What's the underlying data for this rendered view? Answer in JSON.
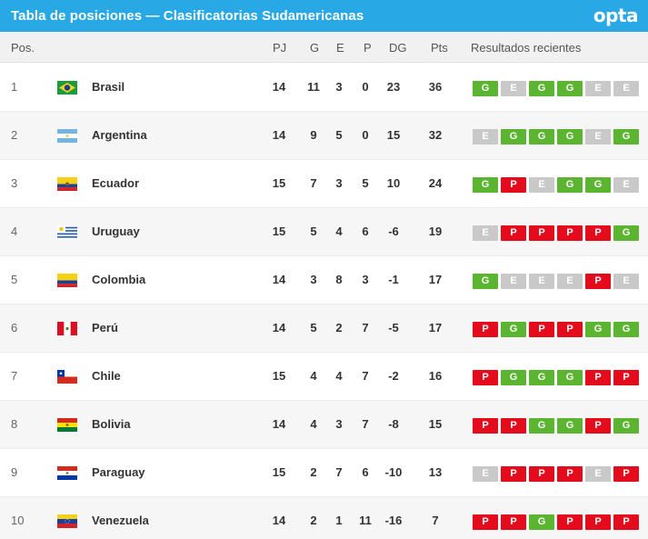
{
  "header": {
    "title": "Tabla de posiciones — Clasificatorias Sudamericanas",
    "logo": "opta"
  },
  "columns": {
    "pos": "Pos.",
    "pj": "PJ",
    "g": "G",
    "e": "E",
    "p": "P",
    "dg": "DG",
    "pts": "Pts",
    "recent": "Resultados recientes"
  },
  "colors": {
    "header": "#29a8e6",
    "win": "#5cb531",
    "draw": "#c9c9c9",
    "loss": "#e30b1c"
  },
  "rows": [
    {
      "pos": "1",
      "team": "Brasil",
      "flag": "brazil-flag-icon",
      "pj": "14",
      "g": "11",
      "e": "3",
      "p": "0",
      "dg": "23",
      "pts": "36",
      "recent": [
        "G",
        "E",
        "G",
        "G",
        "E",
        "E"
      ]
    },
    {
      "pos": "2",
      "team": "Argentina",
      "flag": "argentina-flag-icon",
      "pj": "14",
      "g": "9",
      "e": "5",
      "p": "0",
      "dg": "15",
      "pts": "32",
      "recent": [
        "E",
        "G",
        "G",
        "G",
        "E",
        "G"
      ]
    },
    {
      "pos": "3",
      "team": "Ecuador",
      "flag": "ecuador-flag-icon",
      "pj": "15",
      "g": "7",
      "e": "3",
      "p": "5",
      "dg": "10",
      "pts": "24",
      "recent": [
        "G",
        "P",
        "E",
        "G",
        "G",
        "E"
      ]
    },
    {
      "pos": "4",
      "team": "Uruguay",
      "flag": "uruguay-flag-icon",
      "pj": "15",
      "g": "5",
      "e": "4",
      "p": "6",
      "dg": "-6",
      "pts": "19",
      "recent": [
        "E",
        "P",
        "P",
        "P",
        "P",
        "G"
      ]
    },
    {
      "pos": "5",
      "team": "Colombia",
      "flag": "colombia-flag-icon",
      "pj": "14",
      "g": "3",
      "e": "8",
      "p": "3",
      "dg": "-1",
      "pts": "17",
      "recent": [
        "G",
        "E",
        "E",
        "E",
        "P",
        "E"
      ]
    },
    {
      "pos": "6",
      "team": "Perú",
      "flag": "peru-flag-icon",
      "pj": "14",
      "g": "5",
      "e": "2",
      "p": "7",
      "dg": "-5",
      "pts": "17",
      "recent": [
        "P",
        "G",
        "P",
        "P",
        "G",
        "G"
      ]
    },
    {
      "pos": "7",
      "team": "Chile",
      "flag": "chile-flag-icon",
      "pj": "15",
      "g": "4",
      "e": "4",
      "p": "7",
      "dg": "-2",
      "pts": "16",
      "recent": [
        "P",
        "G",
        "G",
        "G",
        "P",
        "P"
      ]
    },
    {
      "pos": "8",
      "team": "Bolivia",
      "flag": "bolivia-flag-icon",
      "pj": "14",
      "g": "4",
      "e": "3",
      "p": "7",
      "dg": "-8",
      "pts": "15",
      "recent": [
        "P",
        "P",
        "G",
        "G",
        "P",
        "G"
      ]
    },
    {
      "pos": "9",
      "team": "Paraguay",
      "flag": "paraguay-flag-icon",
      "pj": "15",
      "g": "2",
      "e": "7",
      "p": "6",
      "dg": "-10",
      "pts": "13",
      "recent": [
        "E",
        "P",
        "P",
        "P",
        "E",
        "P"
      ]
    },
    {
      "pos": "10",
      "team": "Venezuela",
      "flag": "venezuela-flag-icon",
      "pj": "14",
      "g": "2",
      "e": "1",
      "p": "11",
      "dg": "-16",
      "pts": "7",
      "recent": [
        "P",
        "P",
        "G",
        "P",
        "P",
        "P"
      ]
    }
  ]
}
